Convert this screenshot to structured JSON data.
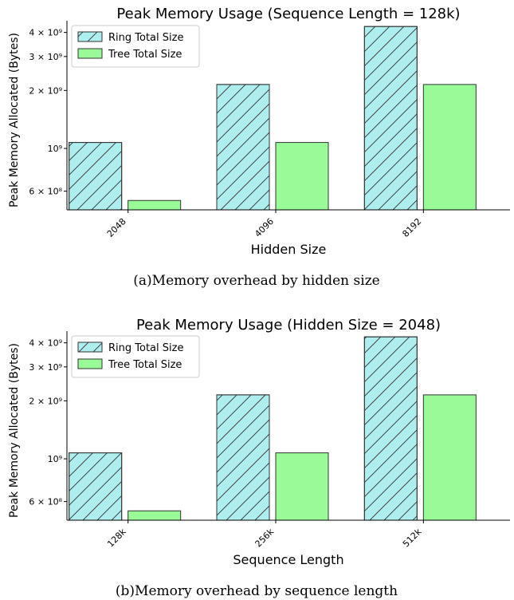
{
  "chart_data": [
    {
      "type": "bar",
      "title": "Peak Memory Usage (Sequence Length = 128k)",
      "xlabel": "Hidden Size",
      "ylabel": "Peak Memory Allocated (Bytes)",
      "categories": [
        "2048",
        "4096",
        "8192"
      ],
      "y_scale": "log",
      "ylim": [
        480000000,
        4600000000
      ],
      "y_ticks": [
        {
          "value": 600000000,
          "label": "6 × 10⁸"
        },
        {
          "value": 1000000000,
          "label": "10⁹"
        },
        {
          "value": 2000000000,
          "label": "2 × 10⁹"
        },
        {
          "value": 3000000000,
          "label": "3 × 10⁹"
        },
        {
          "value": 4000000000,
          "label": "4 × 10⁹"
        }
      ],
      "series": [
        {
          "name": "Ring Total Size",
          "color": "#aeeeee",
          "pattern": "hatch",
          "values": [
            1073741824,
            2147483648,
            4294967296
          ]
        },
        {
          "name": "Tree Total Size",
          "color": "#98fb98",
          "pattern": "solid",
          "values": [
            536870912,
            1073741824,
            2147483648
          ]
        }
      ],
      "legend_position": "top-left",
      "grid": false,
      "caption": "(a)Memory overhead by hidden size"
    },
    {
      "type": "bar",
      "title": "Peak Memory Usage (Hidden Size = 2048)",
      "xlabel": "Sequence Length",
      "ylabel": "Peak Memory Allocated (Bytes)",
      "categories": [
        "128k",
        "256k",
        "512k"
      ],
      "y_scale": "log",
      "ylim": [
        480000000,
        4600000000
      ],
      "y_ticks": [
        {
          "value": 600000000,
          "label": "6 × 10⁸"
        },
        {
          "value": 1000000000,
          "label": "10⁹"
        },
        {
          "value": 2000000000,
          "label": "2 × 10⁹"
        },
        {
          "value": 3000000000,
          "label": "3 × 10⁹"
        },
        {
          "value": 4000000000,
          "label": "4 × 10⁹"
        }
      ],
      "series": [
        {
          "name": "Ring Total Size",
          "color": "#aeeeee",
          "pattern": "hatch",
          "values": [
            1073741824,
            2147483648,
            4294967296
          ]
        },
        {
          "name": "Tree Total Size",
          "color": "#98fb98",
          "pattern": "solid",
          "values": [
            536870912,
            1073741824,
            2147483648
          ]
        }
      ],
      "legend_position": "top-left",
      "grid": false,
      "caption": "(b)Memory overhead by sequence length"
    }
  ]
}
